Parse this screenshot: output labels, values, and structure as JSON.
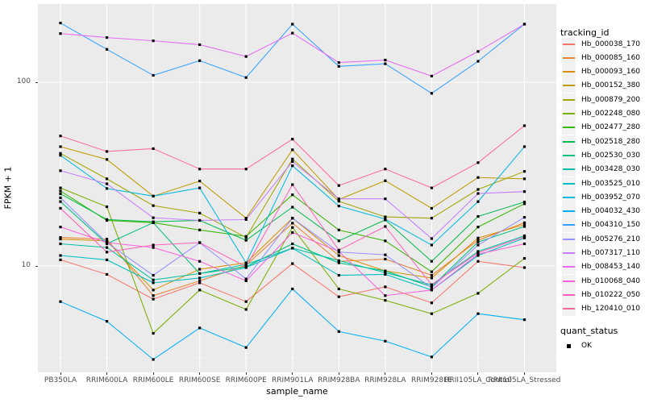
{
  "chart_data": {
    "type": "line",
    "xlabel": "sample_name",
    "ylabel": "FPKM + 1",
    "y_scale": "log10",
    "y_ticks": [
      10,
      100
    ],
    "y_minor_gridlines": [
      3.162,
      31.62
    ],
    "ylim": [
      2.6,
      266
    ],
    "grid": "on",
    "legend_position": "right",
    "legend_title": "tracking_id",
    "point_shape": "filled-square",
    "point_color": "#000000",
    "categories": [
      "PB350LA",
      "RRIM600LA",
      "RRIM600LE",
      "RRIM600SE",
      "RRIM600PE",
      "RRIM901LA",
      "RRIM928BA",
      "RRIM928LA",
      "RRIM928LE",
      "RRII105LA_Control",
      "RRII105LA_Stressed"
    ],
    "series": [
      {
        "name": "Hb_000038_170",
        "color": "#F8766D",
        "values": [
          10.8,
          9.0,
          6.6,
          8.1,
          6.4,
          10.3,
          6.8,
          7.7,
          6.3,
          10.6,
          9.8
        ]
      },
      {
        "name": "Hb_000085_160",
        "color": "#EA8331",
        "values": [
          14.3,
          14.0,
          6.9,
          8.3,
          10.1,
          17.1,
          10.6,
          10.9,
          8.9,
          13.8,
          17.2
        ]
      },
      {
        "name": "Hb_000093_160",
        "color": "#D89000",
        "values": [
          14.0,
          13.7,
          7.4,
          9.6,
          10.4,
          18.2,
          11.4,
          9.4,
          8.6,
          14.2,
          16.8
        ]
      },
      {
        "name": "Hb_000152_380",
        "color": "#C09B00",
        "values": [
          44.6,
          38.0,
          24.0,
          29.0,
          18.2,
          42.9,
          23.0,
          29.1,
          20.6,
          30.3,
          29.8
        ]
      },
      {
        "name": "Hb_000879_200",
        "color": "#A3A500",
        "values": [
          41.0,
          29.8,
          21.3,
          19.4,
          14.3,
          38.2,
          22.5,
          18.5,
          18.2,
          26.1,
          32.7
        ]
      },
      {
        "name": "Hb_002248_080",
        "color": "#7CAE00",
        "values": [
          26.6,
          21.0,
          4.3,
          7.4,
          5.8,
          16.2,
          7.5,
          6.5,
          5.5,
          7.1,
          11.0
        ]
      },
      {
        "name": "Hb_002477_280",
        "color": "#39B600",
        "values": [
          25.6,
          17.7,
          17.2,
          15.7,
          14.5,
          24.4,
          15.7,
          13.7,
          9.3,
          16.3,
          21.8
        ]
      },
      {
        "name": "Hb_002518_280",
        "color": "#00BB4E",
        "values": [
          24.7,
          17.9,
          17.4,
          17.7,
          13.8,
          20.9,
          13.7,
          17.8,
          10.6,
          18.6,
          22.3
        ]
      },
      {
        "name": "Hb_002530_030",
        "color": "#00BF7D",
        "values": [
          22.4,
          13.2,
          17.2,
          9.1,
          9.9,
          13.2,
          10.4,
          9.4,
          7.7,
          13.5,
          16.4
        ]
      },
      {
        "name": "Hb_003428_030",
        "color": "#00C1A3",
        "values": [
          13.2,
          12.6,
          8.4,
          9.1,
          10.2,
          12.5,
          10.7,
          9.2,
          7.9,
          12.0,
          14.6
        ]
      },
      {
        "name": "Hb_003525_010",
        "color": "#00BFC4",
        "values": [
          11.4,
          10.8,
          8.1,
          8.6,
          9.8,
          12.5,
          8.9,
          9.0,
          7.4,
          11.4,
          14.2
        ]
      },
      {
        "name": "Hb_003952_070",
        "color": "#00BAE0",
        "values": [
          40.0,
          26.4,
          24.0,
          26.6,
          10.4,
          35.1,
          21.2,
          18.0,
          13.0,
          22.4,
          44.6
        ]
      },
      {
        "name": "Hb_004032_430",
        "color": "#00B0F6",
        "values": [
          6.4,
          5.0,
          3.1,
          4.6,
          3.6,
          7.5,
          4.4,
          3.9,
          3.2,
          5.5,
          5.1
        ]
      },
      {
        "name": "Hb_004310_150",
        "color": "#35A2FF",
        "values": [
          210,
          151,
          109,
          131,
          106,
          207,
          122,
          126,
          87,
          130,
          207
        ]
      },
      {
        "name": "Hb_005276_210",
        "color": "#9590FF",
        "values": [
          23.5,
          13.4,
          8.9,
          13.4,
          8.5,
          18.2,
          11.9,
          11.5,
          7.6,
          13.0,
          18.4
        ]
      },
      {
        "name": "Hb_007317_110",
        "color": "#C77CFF",
        "values": [
          33.0,
          28.0,
          18.3,
          17.7,
          17.9,
          37.0,
          23.2,
          23.2,
          14.1,
          24.8,
          25.4
        ]
      },
      {
        "name": "Hb_008453_140",
        "color": "#E76BF3",
        "values": [
          184,
          175,
          168,
          160,
          138,
          185,
          128,
          132,
          108,
          147,
          207
        ]
      },
      {
        "name": "Hb_010068_040",
        "color": "#FA62DB",
        "values": [
          16.3,
          13.4,
          12.6,
          10.6,
          8.3,
          15.2,
          12.0,
          6.9,
          7.4,
          11.6,
          13.2
        ]
      },
      {
        "name": "Hb_010222_050",
        "color": "#FF62BC",
        "values": [
          20.6,
          11.9,
          13.0,
          13.4,
          9.9,
          27.7,
          12.2,
          16.4,
          7.9,
          11.8,
          14.4
        ]
      },
      {
        "name": "Hb_120410_010",
        "color": "#FF6A98",
        "values": [
          51,
          42,
          43.5,
          33.7,
          33.7,
          49,
          27.4,
          33.7,
          26.6,
          36.5,
          58
        ]
      }
    ],
    "shape_legend": {
      "title": "quant_status",
      "items": [
        {
          "label": "OK"
        }
      ]
    }
  },
  "style": {
    "panel_bg": "#EBEBEB",
    "grid_major": "#FFFFFF",
    "grid_minor": "#FFFFFF",
    "legend_key_bg": "#F2F2F2",
    "tick_text": "#4D4D4D",
    "tick_mark": "#333333"
  }
}
